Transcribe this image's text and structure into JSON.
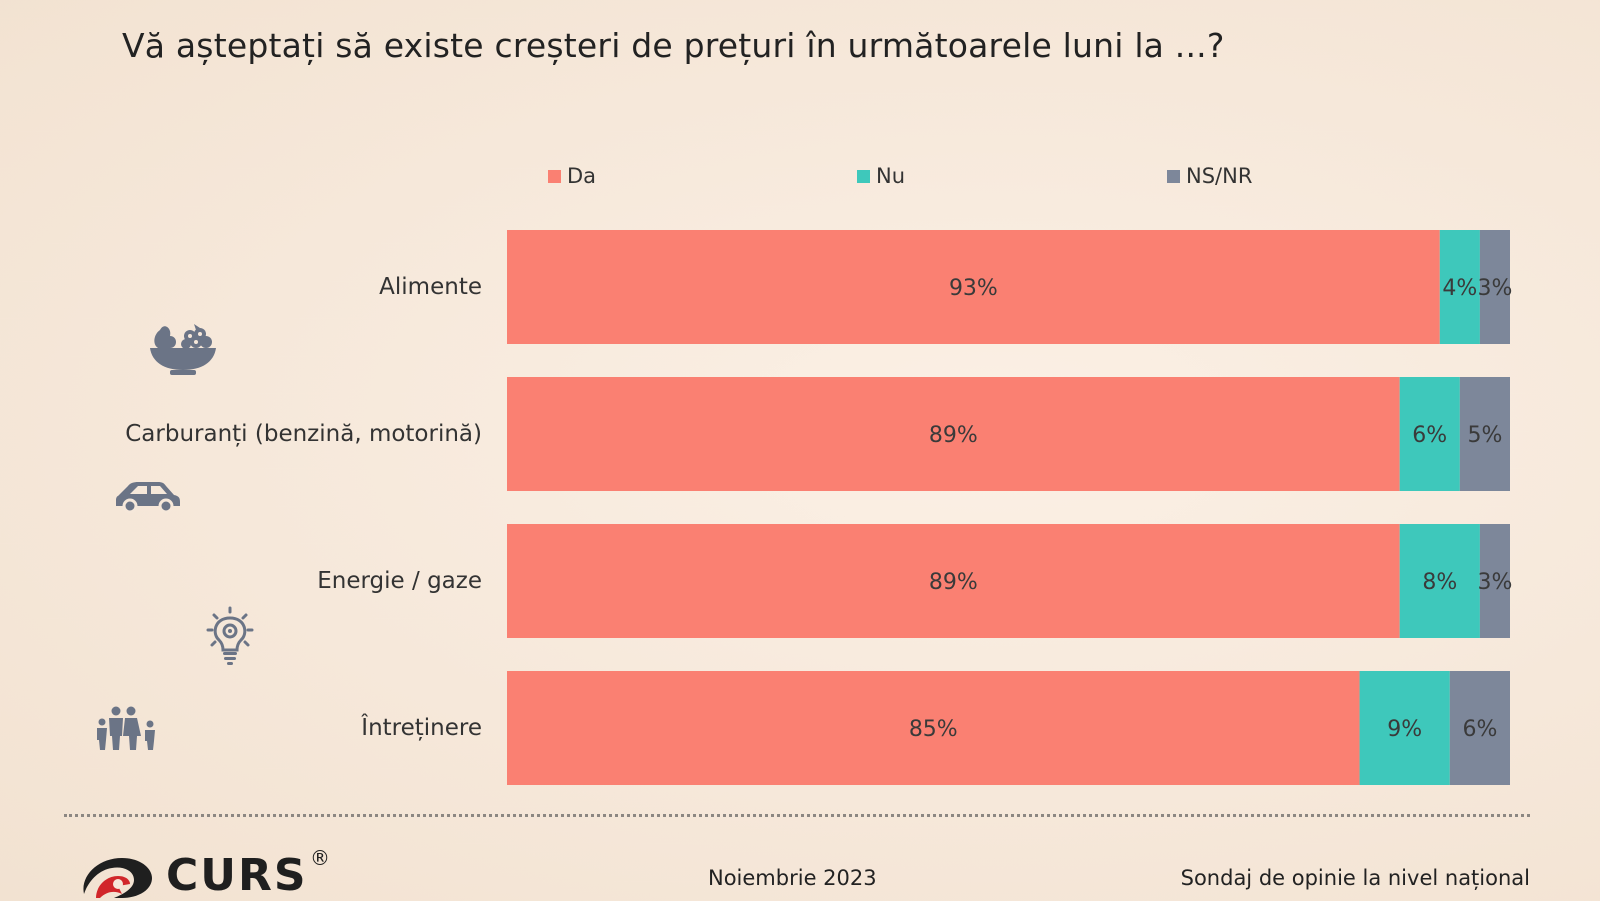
{
  "title": "Vă așteptați să existe creșteri de prețuri în următoarele luni la ...?",
  "chart_data": {
    "type": "bar",
    "orientation": "horizontal",
    "stacked": true,
    "categories": [
      "Alimente",
      "Carburanți (benzină, motorină)",
      "Energie / gaze",
      "Întreținere"
    ],
    "series": [
      {
        "name": "Da",
        "color": "#fa8072",
        "values": [
          93,
          89,
          89,
          85
        ]
      },
      {
        "name": "Nu",
        "color": "#3ec8bb",
        "values": [
          4,
          6,
          8,
          9
        ]
      },
      {
        "name": "NS/NR",
        "color": "#7d879a",
        "values": [
          3,
          5,
          3,
          6
        ]
      }
    ],
    "value_suffix": "%",
    "legend_position": "top",
    "grid": false
  },
  "icons": {
    "food": "fruit-bowl-icon",
    "fuel": "car-icon",
    "energy": "light-bulb-icon",
    "housing": "family-icon"
  },
  "footer": {
    "brand": "CURS",
    "registered": "®",
    "date": "Noiembrie 2023",
    "source": "Sondaj de opinie la nivel național"
  },
  "colors": {
    "background": "#f6e8da",
    "icon": "#6b7486"
  }
}
